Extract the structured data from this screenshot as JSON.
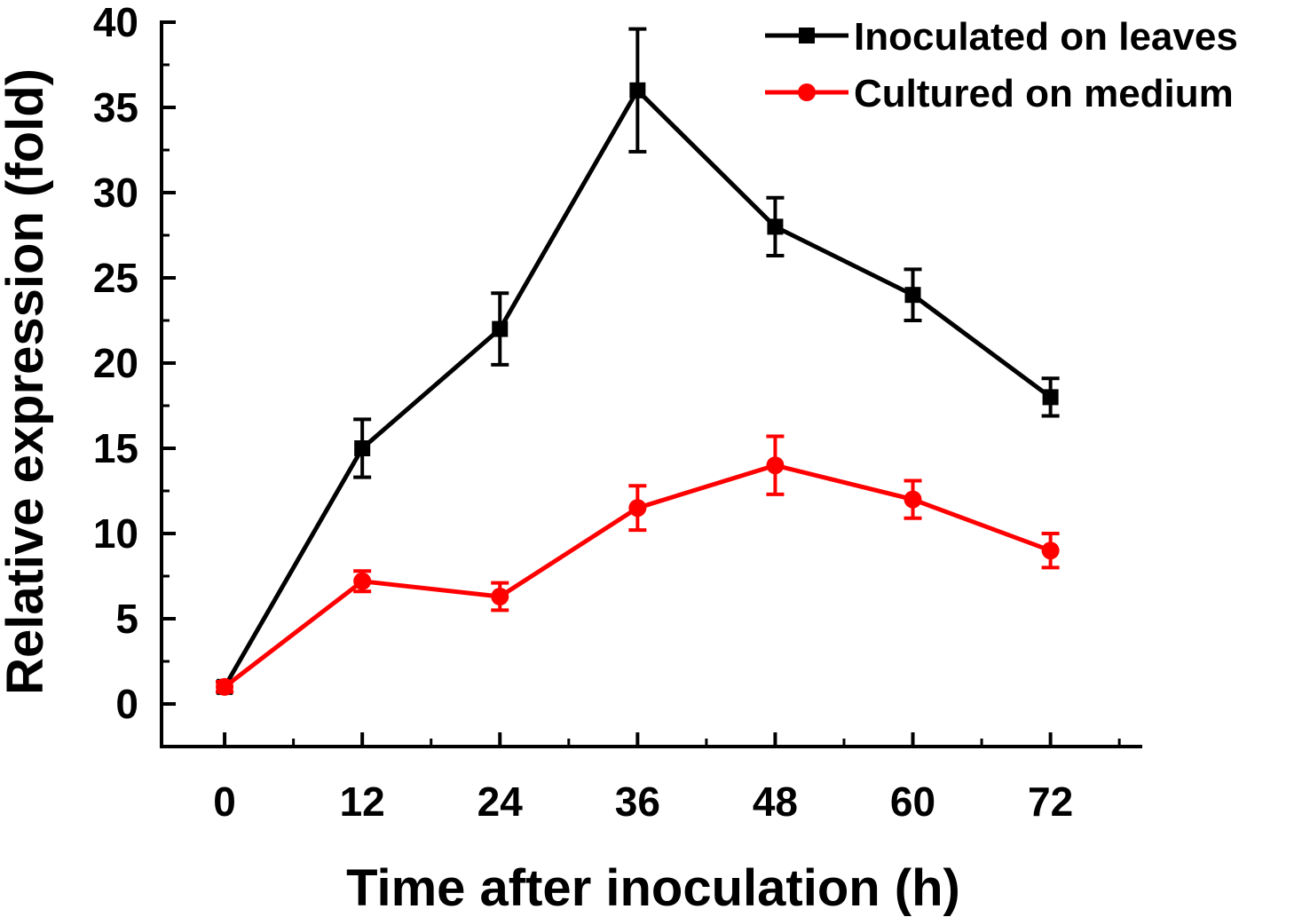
{
  "chart_data": {
    "type": "line",
    "title": "",
    "xlabel": "Time after inoculation (h)",
    "ylabel": "Relative expression (fold)",
    "x": [
      0,
      12,
      24,
      36,
      48,
      60,
      72
    ],
    "x_tick_labels": [
      "0",
      "12",
      "24",
      "36",
      "48",
      "60",
      "72"
    ],
    "xlim": [
      -5.5,
      80
    ],
    "ylim": [
      -2.5,
      40
    ],
    "y_ticks": [
      0,
      5,
      10,
      15,
      20,
      25,
      30,
      35,
      40
    ],
    "y_tick_labels": [
      "0",
      "5",
      "10",
      "15",
      "20",
      "25",
      "30",
      "35",
      "40"
    ],
    "grid": false,
    "legend_position": "top-right",
    "series": [
      {
        "name": "Inoculated on leaves",
        "color": "#000000",
        "marker": "square",
        "values": [
          1,
          15,
          22,
          36,
          28,
          24,
          18
        ],
        "errors": [
          0.3,
          1.7,
          2.1,
          3.6,
          1.7,
          1.5,
          1.1
        ]
      },
      {
        "name": "Cultured on medium",
        "color": "#ff0000",
        "marker": "circle",
        "values": [
          1,
          7.2,
          6.3,
          11.5,
          14,
          12,
          9
        ],
        "errors": [
          0.3,
          0.6,
          0.8,
          1.3,
          1.7,
          1.1,
          1.0
        ]
      }
    ]
  }
}
